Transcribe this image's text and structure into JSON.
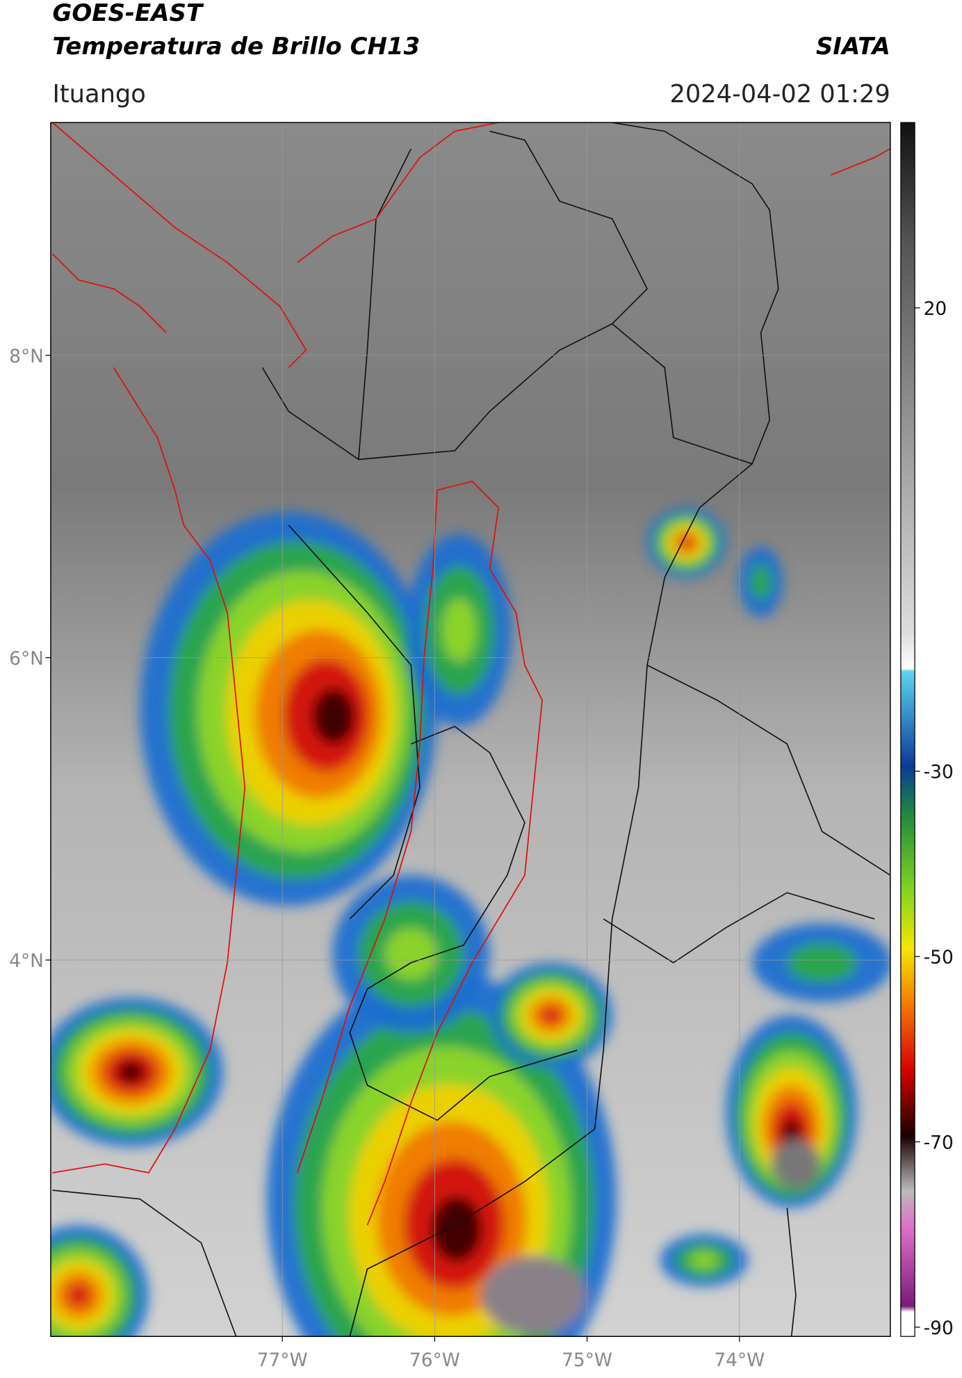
{
  "header": {
    "title": "GOES-EAST",
    "subtitle": "Temperatura de Brillo CH13",
    "brand": "SIATA",
    "location": "Ituango",
    "datetime": "2024-04-02 01:29"
  },
  "map": {
    "lonlim": [
      -78.52,
      -73.01
    ],
    "latlim": [
      1.51,
      9.54
    ],
    "lonticks": [
      {
        "value": -77,
        "label": "77°W"
      },
      {
        "value": -76,
        "label": "76°W"
      },
      {
        "value": -75,
        "label": "75°W"
      },
      {
        "value": -74,
        "label": "74°W"
      }
    ],
    "latticks": [
      {
        "value": 8,
        "label": "8°N"
      },
      {
        "value": 6,
        "label": "6°N"
      },
      {
        "value": 4,
        "label": "4°N"
      }
    ]
  },
  "colorbar": {
    "lim": [
      -91,
      40
    ],
    "ticks": [
      20,
      -30,
      -50,
      -70,
      -90
    ]
  }
}
